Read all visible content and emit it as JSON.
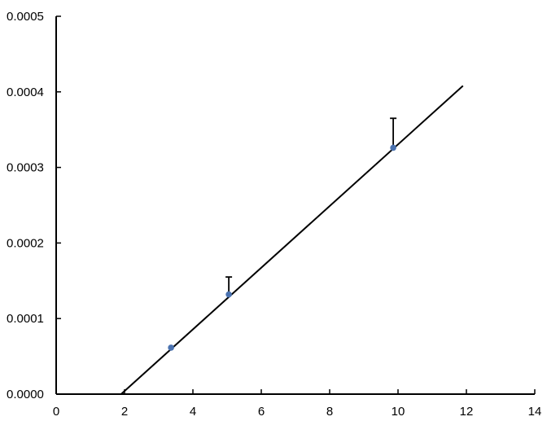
{
  "chart_data": {
    "type": "scatter",
    "title": "",
    "xlabel": "",
    "ylabel": "",
    "xlim": [
      0,
      14
    ],
    "ylim": [
      0,
      0.0005
    ],
    "x_ticks": [
      "0",
      "2",
      "4",
      "6",
      "8",
      "10",
      "12",
      "14"
    ],
    "y_ticks": [
      "0.0000",
      "0.0001",
      "0.0002",
      "0.0003",
      "0.0004",
      "0.0005"
    ],
    "grid": false,
    "legend": "none",
    "points": [
      {
        "x": 3.36,
        "y": 6.15e-05,
        "err_upper": null
      },
      {
        "x": 5.05,
        "y": 0.000132,
        "err_upper": 0.000155
      },
      {
        "x": 9.86,
        "y": 0.000326,
        "err_upper": 0.000365
      }
    ],
    "fit_line": {
      "x": [
        1.9,
        11.9
      ],
      "y": [
        0.0,
        0.000408
      ]
    },
    "colors": {
      "points": "#4a72b0",
      "line": "#000000",
      "error_bars": "#000000"
    }
  }
}
